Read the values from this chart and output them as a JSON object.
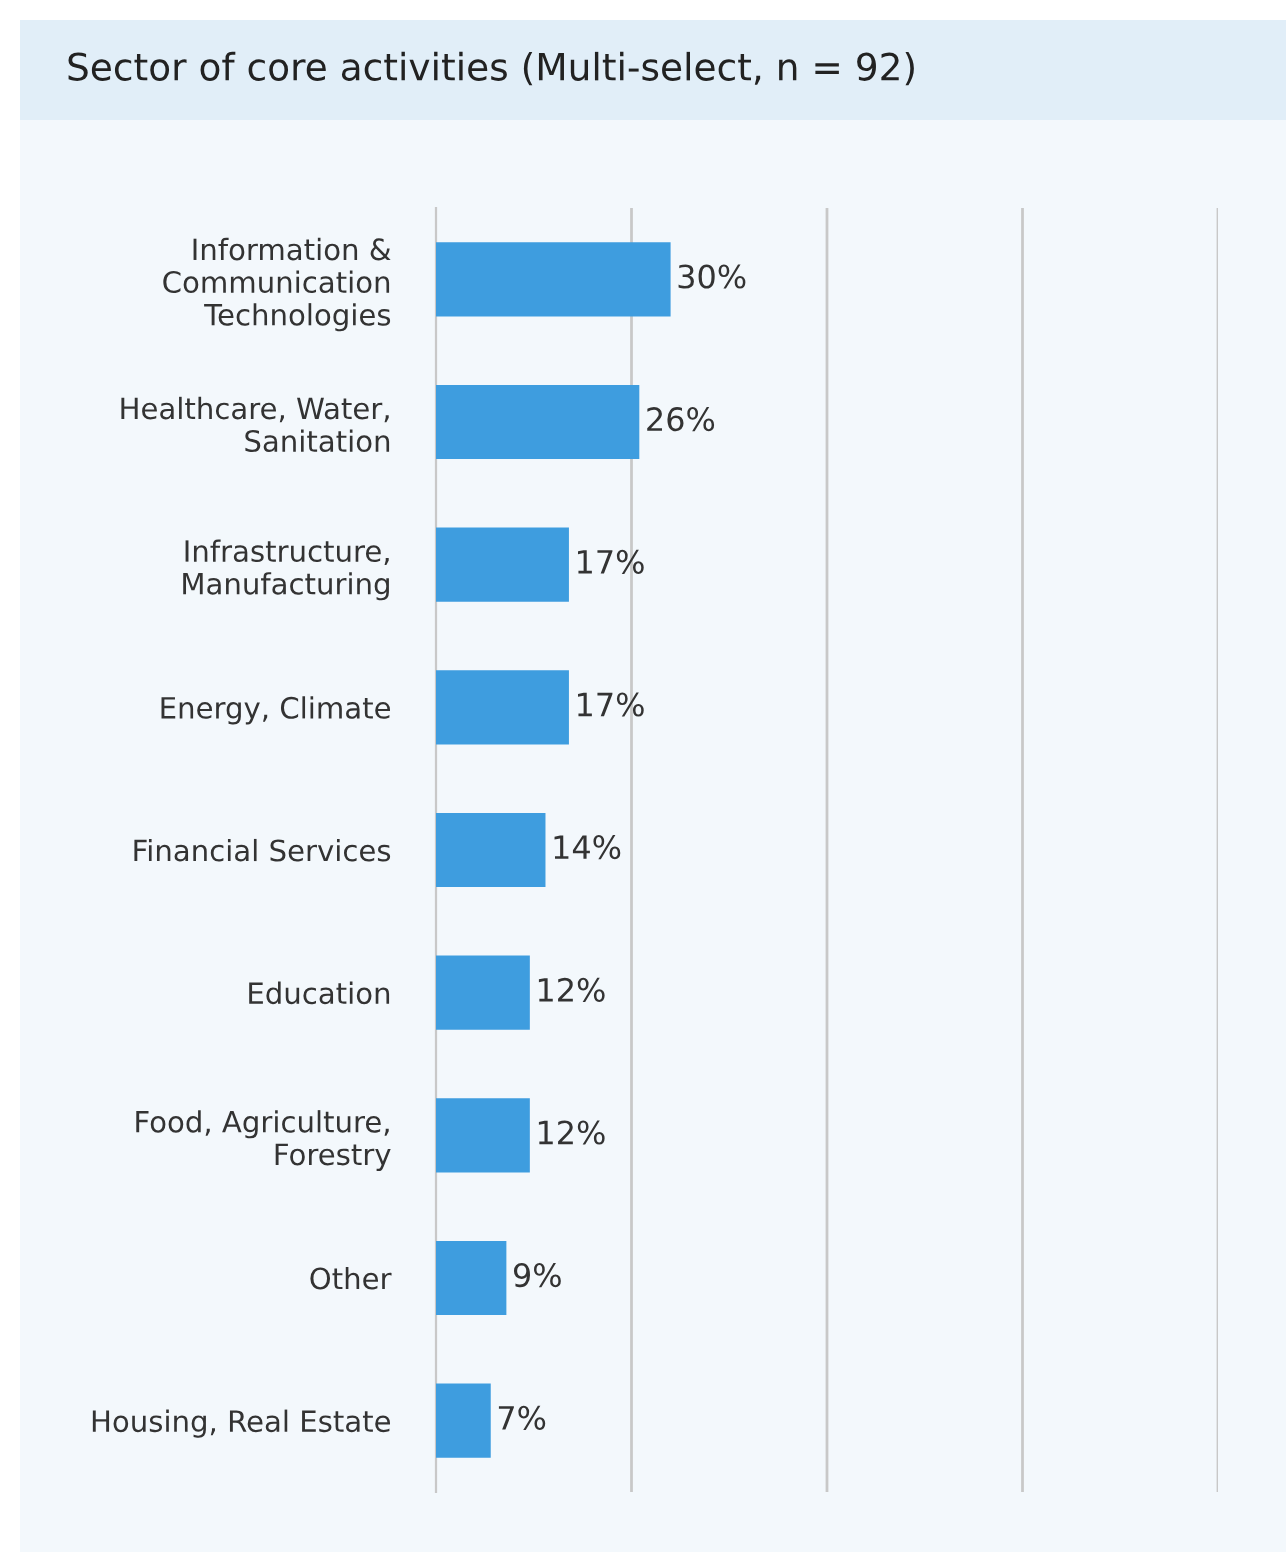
{
  "chart_data": {
    "type": "bar",
    "orientation": "horizontal",
    "title": "Sector of core activities (Multi-select, n = 92)",
    "categories": [
      "Information &\nCommunication\nTechnologies",
      "Healthcare, Water,\nSanitation",
      "Infrastructure,\nManufacturing",
      "Energy, Climate",
      "Financial Services",
      "Education",
      "Food, Agriculture,\nForestry",
      "Other",
      "Housing, Real Estate"
    ],
    "values": [
      30,
      26,
      17,
      17,
      14,
      12,
      12,
      9,
      7
    ],
    "value_labels": [
      "30%",
      "26%",
      "17%",
      "17%",
      "14%",
      "12%",
      "12%",
      "9%",
      "7%"
    ],
    "color": "#3e9ddf",
    "xlim": [
      0,
      100
    ],
    "xticks": [
      {
        "value": 25,
        "label": null
      },
      {
        "value": 50,
        "label": null
      },
      {
        "value": 75,
        "label": null
      },
      {
        "value": 100,
        "label": null
      }
    ],
    "tick_labels": "y",
    "grid": "x",
    "legend": false
  }
}
